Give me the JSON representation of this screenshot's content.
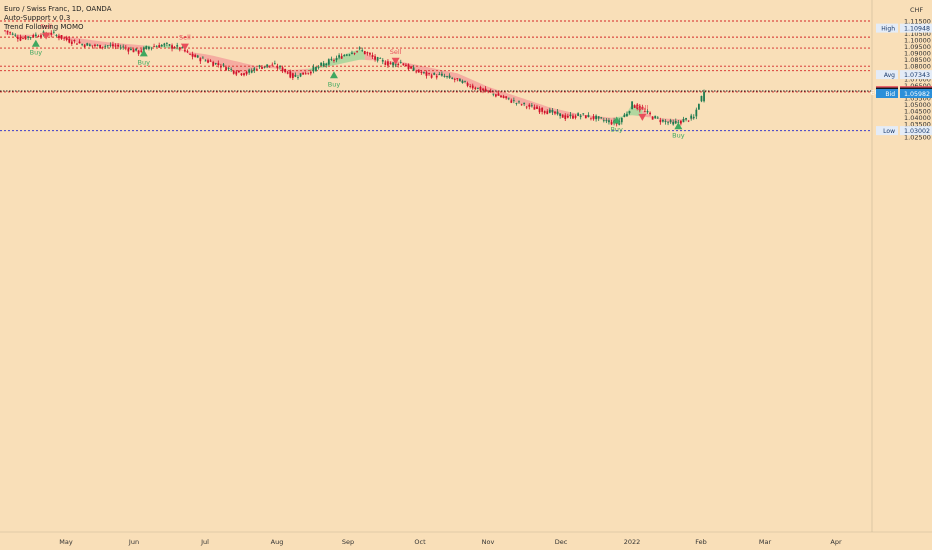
{
  "legend": {
    "title": "Euro / Swiss Franc, 1D, OANDA",
    "indicator1": "Auto-Support v 0.3",
    "indicator2": "Trend Following MOMO"
  },
  "colors": {
    "background": "#f9dfb8",
    "up_candle": "#1e7a4f",
    "down_candle": "#d0112a",
    "bear_band": "#f5a39c",
    "bull_band": "#a5d69a",
    "resistance_line": "#d32626",
    "low_line": "#3d3dc8",
    "sell_marker": "#e8505b",
    "buy_marker": "#3fa860",
    "ask_badge": "#e8505b",
    "bid_badge": "#2b8fd9",
    "symbol_badge": "#131722"
  },
  "chart_data": {
    "type": "candlestick",
    "currency": "CHF",
    "ylim": [
      1.0225,
      1.1175
    ],
    "y_ticks": [
      "1.11500",
      "1.11000",
      "1.10500",
      "1.10000",
      "1.09500",
      "1.09000",
      "1.08500",
      "1.08000",
      "1.07500",
      "1.07000",
      "1.06500",
      "1.06000",
      "1.05500",
      "1.05000",
      "1.04500",
      "1.04000",
      "1.03500",
      "1.03000",
      "1.02500"
    ],
    "x_ticks": [
      "May",
      "Jun",
      "Jul",
      "Aug",
      "Sep",
      "Oct",
      "Nov",
      "Dec",
      "2022",
      "Feb",
      "Mar",
      "Apr"
    ],
    "price_path": [
      [
        0,
        1.1075
      ],
      [
        6,
        1.1015
      ],
      [
        12,
        1.104
      ],
      [
        18,
        1.1055
      ],
      [
        24,
        1.1005
      ],
      [
        30,
        1.097
      ],
      [
        36,
        1.0955
      ],
      [
        40,
        1.096
      ],
      [
        46,
        1.0945
      ],
      [
        52,
        1.091
      ],
      [
        56,
        1.095
      ],
      [
        62,
        1.0965
      ],
      [
        68,
        1.094
      ],
      [
        72,
        1.0885
      ],
      [
        78,
        1.0845
      ],
      [
        84,
        1.0805
      ],
      [
        90,
        1.0755
      ],
      [
        94,
        1.0745
      ],
      [
        98,
        1.079
      ],
      [
        104,
        1.081
      ],
      [
        108,
        1.0775
      ],
      [
        112,
        1.072
      ],
      [
        118,
        1.0755
      ],
      [
        124,
        1.0815
      ],
      [
        130,
        1.087
      ],
      [
        134,
        1.0905
      ],
      [
        138,
        1.093
      ],
      [
        144,
        1.0855
      ],
      [
        150,
        1.0815
      ],
      [
        154,
        1.083
      ],
      [
        158,
        1.0775
      ],
      [
        164,
        1.0735
      ],
      [
        170,
        1.0725
      ],
      [
        176,
        1.069
      ],
      [
        182,
        1.064
      ],
      [
        188,
        1.06
      ],
      [
        194,
        1.0555
      ],
      [
        200,
        1.051
      ],
      [
        206,
        1.0475
      ],
      [
        212,
        1.0445
      ],
      [
        218,
        1.0405
      ],
      [
        224,
        1.042
      ],
      [
        230,
        1.0395
      ],
      [
        236,
        1.0365
      ],
      [
        238,
        1.0355
      ],
      [
        240,
        1.04
      ],
      [
        242,
        1.044
      ],
      [
        244,
        1.0505
      ],
      [
        248,
        1.046
      ],
      [
        252,
        1.0405
      ],
      [
        256,
        1.0375
      ],
      [
        260,
        1.0355
      ],
      [
        264,
        1.038
      ],
      [
        268,
        1.04
      ],
      [
        270,
        1.052
      ],
      [
        272,
        1.06
      ]
    ],
    "trend_band": [
      [
        0,
        1.1045
      ],
      [
        20,
        1.104
      ],
      [
        40,
        1.0985
      ],
      [
        60,
        1.095
      ],
      [
        80,
        1.0885
      ],
      [
        100,
        1.079
      ],
      [
        112,
        1.077
      ],
      [
        124,
        1.079
      ],
      [
        138,
        1.085
      ],
      [
        154,
        1.0835
      ],
      [
        176,
        1.0745
      ],
      [
        188,
        1.064
      ],
      [
        200,
        1.056
      ],
      [
        212,
        1.048
      ],
      [
        224,
        1.0425
      ],
      [
        236,
        1.04
      ],
      [
        244,
        1.042
      ],
      [
        252,
        1.04
      ],
      [
        262,
        1.0388
      ],
      [
        268,
        1.039
      ]
    ],
    "bull_band_ranges": [
      [
        54,
        68
      ],
      [
        118,
        140
      ],
      [
        238,
        248
      ]
    ],
    "resistance_levels": [
      1.115,
      1.1025,
      1.094,
      1.08,
      1.0765,
      1.06
    ],
    "high_value": 1.10948,
    "avg_value": 1.07343,
    "low_value": 1.03002,
    "signals": [
      {
        "type": "Sell",
        "day": 16,
        "price": 1.106
      },
      {
        "type": "Buy",
        "day": 12,
        "price": 1.1005
      },
      {
        "type": "Sell",
        "day": 70,
        "price": 1.0975
      },
      {
        "type": "Buy",
        "day": 54,
        "price": 1.093
      },
      {
        "type": "Buy",
        "day": 128,
        "price": 1.076
      },
      {
        "type": "Sell",
        "day": 152,
        "price": 1.0865
      },
      {
        "type": "Buy",
        "day": 238,
        "price": 1.041
      },
      {
        "type": "Sell",
        "day": 248,
        "price": 1.043
      },
      {
        "type": "Buy",
        "day": 262,
        "price": 1.0365
      }
    ],
    "labels": {
      "high": "High",
      "high_price": "1.10948",
      "avg": "Avg",
      "avg_price": "1.07343",
      "ask": "Ask",
      "ask_price": "1.06010",
      "symbol": "EURCHF",
      "symbol_price": "1.05996",
      "bid": "Bid",
      "bid_price": "1.05982",
      "low": "Low",
      "low_price": "1.03002"
    }
  }
}
